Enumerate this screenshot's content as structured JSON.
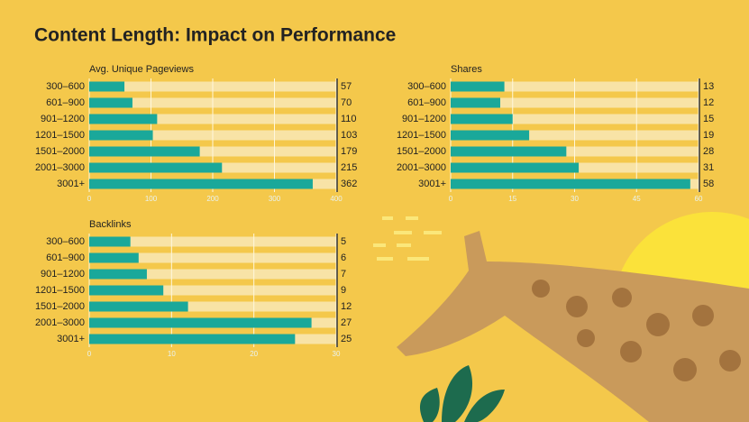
{
  "title": "Content Length: Impact on Performance",
  "chart_data": [
    {
      "type": "bar",
      "orientation": "horizontal",
      "title": "Avg. Unique Pageviews",
      "categories": [
        "300–600",
        "601–900",
        "901–1200",
        "1201–1500",
        "1501–2000",
        "2001–3000",
        "3001+"
      ],
      "values": [
        57,
        70,
        110,
        103,
        179,
        215,
        362
      ],
      "color": "#1aa89a",
      "xlim": [
        0,
        400
      ],
      "xticks": [
        0,
        100,
        200,
        300,
        400
      ],
      "grid": true
    },
    {
      "type": "bar",
      "orientation": "horizontal",
      "title": "Shares",
      "categories": [
        "300–600",
        "601–900",
        "901–1200",
        "1201–1500",
        "1501–2000",
        "2001–3000",
        "3001+"
      ],
      "values": [
        13,
        12,
        15,
        19,
        28,
        31,
        58
      ],
      "color": "#1aa89a",
      "xlim": [
        0,
        60
      ],
      "xticks": [
        0,
        15,
        30,
        45,
        60
      ],
      "grid": true
    },
    {
      "type": "bar",
      "orientation": "horizontal",
      "title": "Backlinks",
      "categories": [
        "300–600",
        "601–900",
        "901–1200",
        "1201–1500",
        "1501–2000",
        "2001–3000",
        "3001+"
      ],
      "values": [
        5,
        6,
        7,
        9,
        12,
        27,
        25
      ],
      "color": "#1aa89a",
      "xlim": [
        0,
        30
      ],
      "xticks": [
        0,
        10,
        20,
        30
      ],
      "grid": true
    }
  ]
}
